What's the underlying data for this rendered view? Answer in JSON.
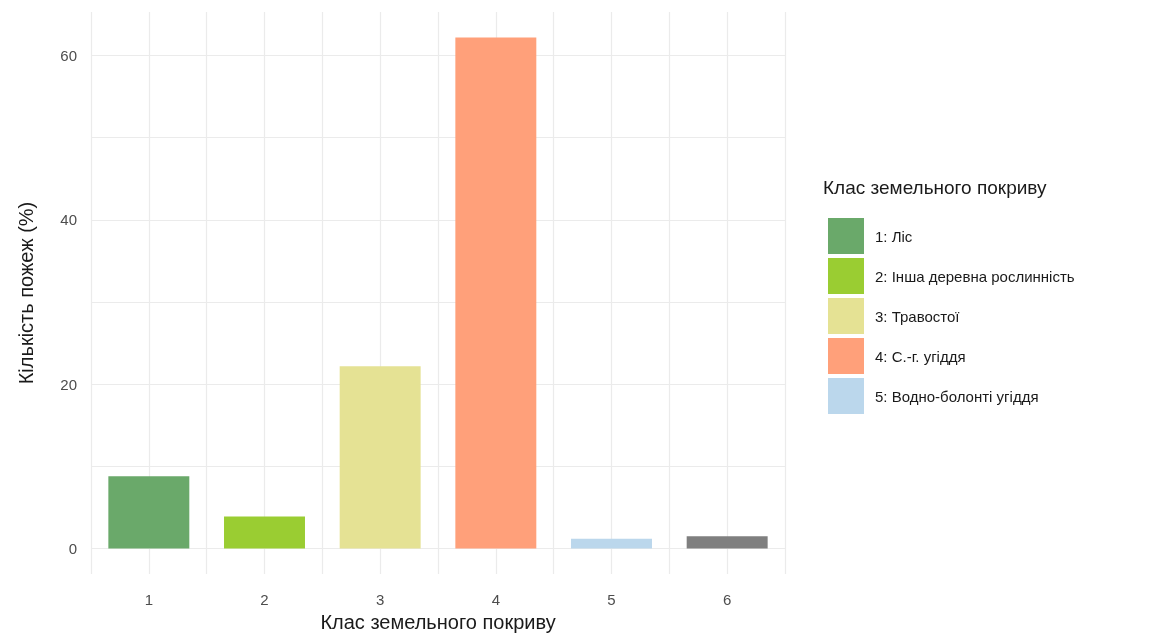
{
  "chart_data": {
    "type": "bar",
    "xlabel": "Клас земельного покриву",
    "ylabel": "Кількість пожеж (%)",
    "legend_title": "Клас земельного покриву",
    "categories": [
      "1",
      "2",
      "3",
      "4",
      "5",
      "6"
    ],
    "series": [
      {
        "name": "1: Ліс",
        "color": "#6aa96a",
        "values": [
          8.8,
          null,
          null,
          null,
          null,
          null
        ]
      },
      {
        "name": "2: Інша деревна рослинність",
        "color": "#9acd32",
        "values": [
          null,
          3.9,
          null,
          null,
          null,
          null
        ]
      },
      {
        "name": "3: Травостої",
        "color": "#e5e294",
        "values": [
          null,
          null,
          22.2,
          null,
          null,
          null
        ]
      },
      {
        "name": "4: С.-г. угіддя",
        "color": "#ffa07a",
        "values": [
          null,
          null,
          null,
          62.2,
          null,
          null
        ]
      },
      {
        "name": "5: Водно-болонті угіддя",
        "color": "#bbd7ec",
        "values": [
          null,
          null,
          null,
          null,
          1.2,
          null
        ]
      },
      {
        "color": "#7f7f7f",
        "values": [
          null,
          null,
          null,
          null,
          null,
          1.5
        ]
      }
    ],
    "ylim": [
      -3.1,
      65.3
    ],
    "yticks": [
      0,
      {
        "value": 10,
        "label": null
      },
      20,
      {
        "value": 30,
        "label": null
      },
      40,
      {
        "value": 50,
        "label": null
      },
      60
    ],
    "grid": true,
    "legend": "right"
  }
}
